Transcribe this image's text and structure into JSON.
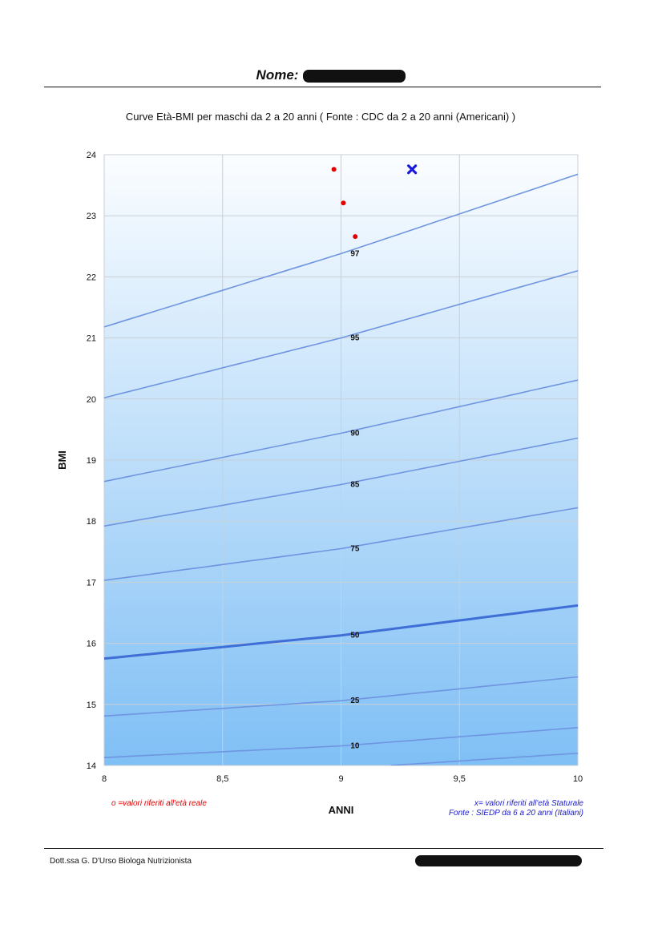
{
  "header": {
    "name_label": "Nome:"
  },
  "chart_title": "Curve Età-BMI per maschi da 2 a 20 anni ( Fonte : CDC da 2 a 20 anni (Americani) )",
  "legend": {
    "real_age": "o =valori riferiti all'età reale",
    "stature_age": "x= valori riferiti all'età Staturale",
    "source_italian": "Fonte : SIEDP da 6 a 20 anni (Italiani)"
  },
  "footer": {
    "author": "Dott.ssa G. D'Urso Biologa Nutrizionista"
  },
  "chart_data": {
    "type": "line",
    "title": "Curve Età-BMI per maschi da 2 a 20 anni ( Fonte : CDC da 2 a 20 anni (Americani) )",
    "xlabel": "ANNI",
    "ylabel": "BMI",
    "xlim": [
      8,
      10
    ],
    "ylim": [
      14,
      24
    ],
    "x_ticks": [
      "8",
      "8,5",
      "9",
      "9,5",
      "10"
    ],
    "y_ticks": [
      "14",
      "15",
      "16",
      "17",
      "18",
      "19",
      "20",
      "21",
      "22",
      "23",
      "24"
    ],
    "grid": true,
    "percentile_curves": [
      {
        "label": "97",
        "x": [
          8,
          9,
          10
        ],
        "values": [
          21.18,
          22.38,
          23.68
        ]
      },
      {
        "label": "95",
        "x": [
          8,
          9,
          10
        ],
        "values": [
          20.02,
          21.0,
          22.1
        ]
      },
      {
        "label": "90",
        "x": [
          8,
          9,
          10
        ],
        "values": [
          18.65,
          19.44,
          20.31
        ]
      },
      {
        "label": "85",
        "x": [
          8,
          9,
          10
        ],
        "values": [
          17.92,
          18.6,
          19.36
        ]
      },
      {
        "label": "75",
        "x": [
          8,
          9,
          10
        ],
        "values": [
          17.03,
          17.55,
          18.22
        ]
      },
      {
        "label": "50",
        "x": [
          8,
          9,
          10
        ],
        "values": [
          15.75,
          16.13,
          16.62
        ]
      },
      {
        "label": "25",
        "x": [
          8,
          9,
          10
        ],
        "values": [
          14.81,
          15.06,
          15.45
        ]
      },
      {
        "label": "10",
        "x": [
          8,
          9,
          10
        ],
        "values": [
          14.13,
          14.32,
          14.62
        ]
      },
      {
        "label": "",
        "x": [
          9.21,
          10
        ],
        "values": [
          14.0,
          14.2
        ]
      }
    ],
    "real_age_points": [
      {
        "x": 8.97,
        "y": 23.76
      },
      {
        "x": 9.01,
        "y": 23.21
      },
      {
        "x": 9.06,
        "y": 22.66
      }
    ],
    "stature_age_points": [
      {
        "x": 9.3,
        "y": 23.76
      }
    ],
    "colors": {
      "curve": "#6f95e0",
      "median_curve": "#3f6fd6",
      "real_age_marker": "#e00000",
      "stature_age_marker": "#1a1add",
      "background_top": "#fbfdff",
      "background_bottom": "#7fbff5"
    }
  }
}
